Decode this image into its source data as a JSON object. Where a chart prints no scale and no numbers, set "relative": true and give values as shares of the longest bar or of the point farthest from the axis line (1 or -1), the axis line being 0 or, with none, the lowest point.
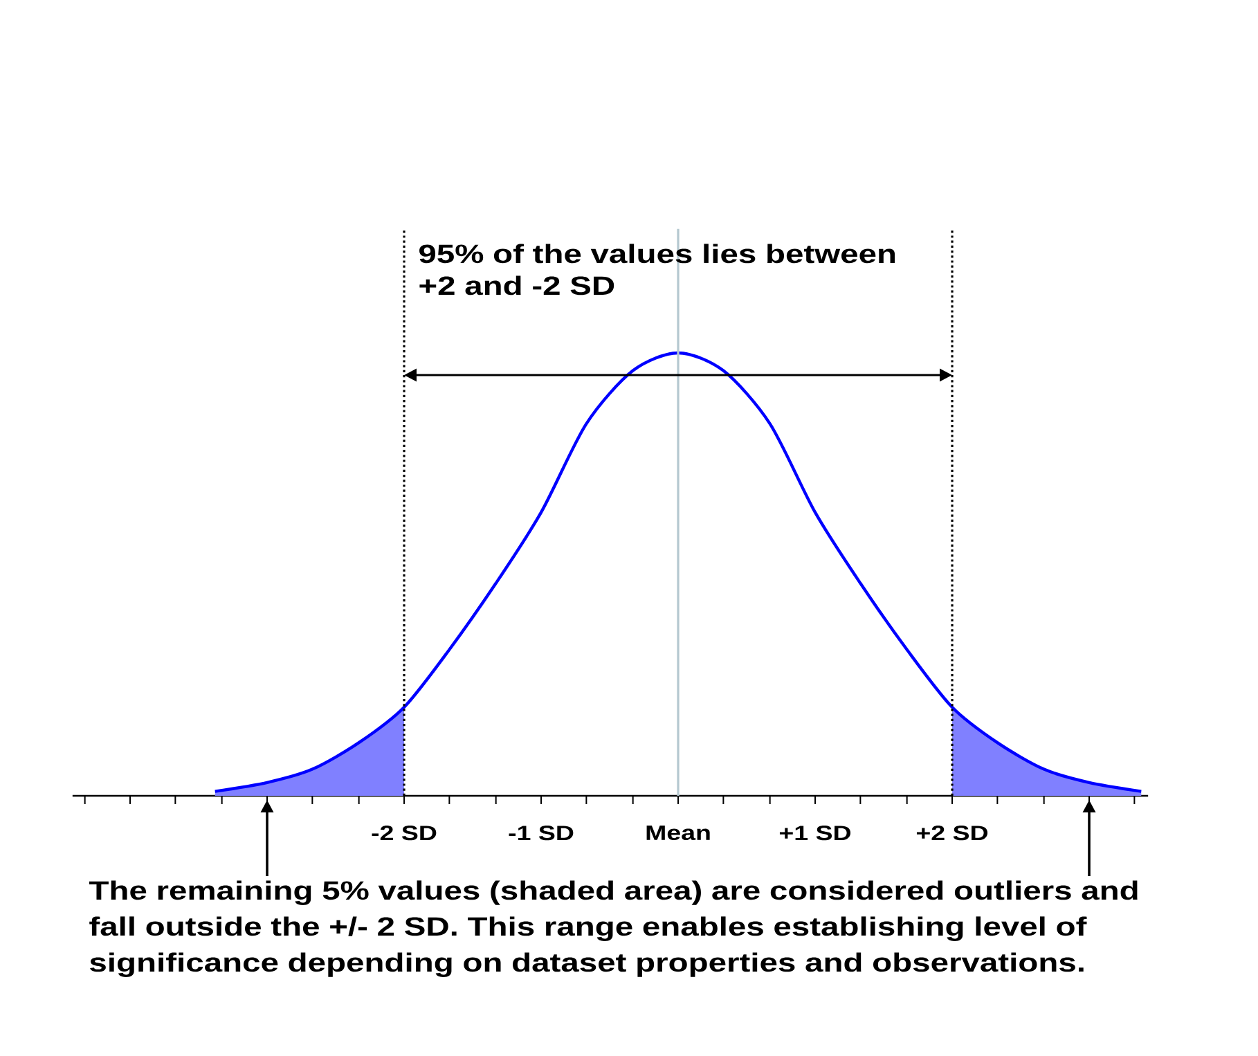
{
  "chart_data": {
    "type": "line",
    "relative": true,
    "annotations": [
      "95% of the values lies between +2 and -2 SD",
      "The remaining 5% values (shaded area) are considered outliers and fall outside the +/- 2 SD. This range enables establishing level of significance depending on dataset properties and observations."
    ],
    "x": [
      -3.38,
      -3,
      -2.67,
      -2.33,
      -2,
      -1.67,
      -1.33,
      -1,
      -0.67,
      -0.33,
      0,
      0.33,
      0.67,
      1,
      1.33,
      1.67,
      2,
      2.33,
      2.67,
      3,
      3.38
    ],
    "xlim": [
      -4.42,
      3.43
    ],
    "xticks": [
      {
        "value": -4.33,
        "label": null
      },
      {
        "value": -4,
        "label": null
      },
      {
        "value": -3.67,
        "label": null
      },
      {
        "value": -3.33,
        "label": null
      },
      {
        "value": -3,
        "label": null
      },
      {
        "value": -2.67,
        "label": null
      },
      {
        "value": -2.33,
        "label": null
      },
      {
        "value": -2,
        "label": "-2 SD"
      },
      {
        "value": -1.67,
        "label": null
      },
      {
        "value": -1.33,
        "label": null
      },
      {
        "value": -1,
        "label": "-1 SD"
      },
      {
        "value": -0.67,
        "label": null
      },
      {
        "value": -0.33,
        "label": null
      },
      {
        "value": 0,
        "label": "Mean"
      },
      {
        "value": 0.33,
        "label": null
      },
      {
        "value": 0.67,
        "label": null
      },
      {
        "value": 1,
        "label": "+1 SD"
      },
      {
        "value": 1.33,
        "label": null
      },
      {
        "value": 1.67,
        "label": null
      },
      {
        "value": 2,
        "label": "+2 SD"
      },
      {
        "value": 2.33,
        "label": null
      },
      {
        "value": 2.67,
        "label": null
      },
      {
        "value": 3,
        "label": null
      },
      {
        "value": 3.33,
        "label": null
      }
    ],
    "series": [
      {
        "type": "area",
        "color": "#8080ff",
        "x": [
          -3.38,
          -3,
          -2.67,
          -2.33,
          -2
        ],
        "values": [
          0.01,
          0.03,
          0.06,
          0.12,
          0.2
        ]
      },
      {
        "type": "area",
        "color": "#8080ff",
        "x": [
          2,
          2.33,
          2.67,
          3,
          3.38
        ],
        "values": [
          0.2,
          0.12,
          0.06,
          0.03,
          0.01
        ]
      },
      {
        "color": "#0000ff",
        "values": [
          0.01,
          0.03,
          0.06,
          0.12,
          0.2,
          0.33,
          0.48,
          0.64,
          0.84,
          0.96,
          1,
          0.96,
          0.84,
          0.64,
          0.48,
          0.33,
          0.2,
          0.12,
          0.06,
          0.03,
          0.01
        ]
      }
    ],
    "ref_lines": [
      {
        "axis": "x",
        "value": -2,
        "color": "#000000",
        "line_style": "dotted"
      },
      {
        "axis": "x",
        "value": 2,
        "color": "#000000",
        "line_style": "dotted"
      },
      {
        "axis": "x",
        "value": 0,
        "color": "#b4c8d0",
        "line_style": "solid"
      }
    ],
    "marker": "none",
    "line_style": "solid"
  }
}
